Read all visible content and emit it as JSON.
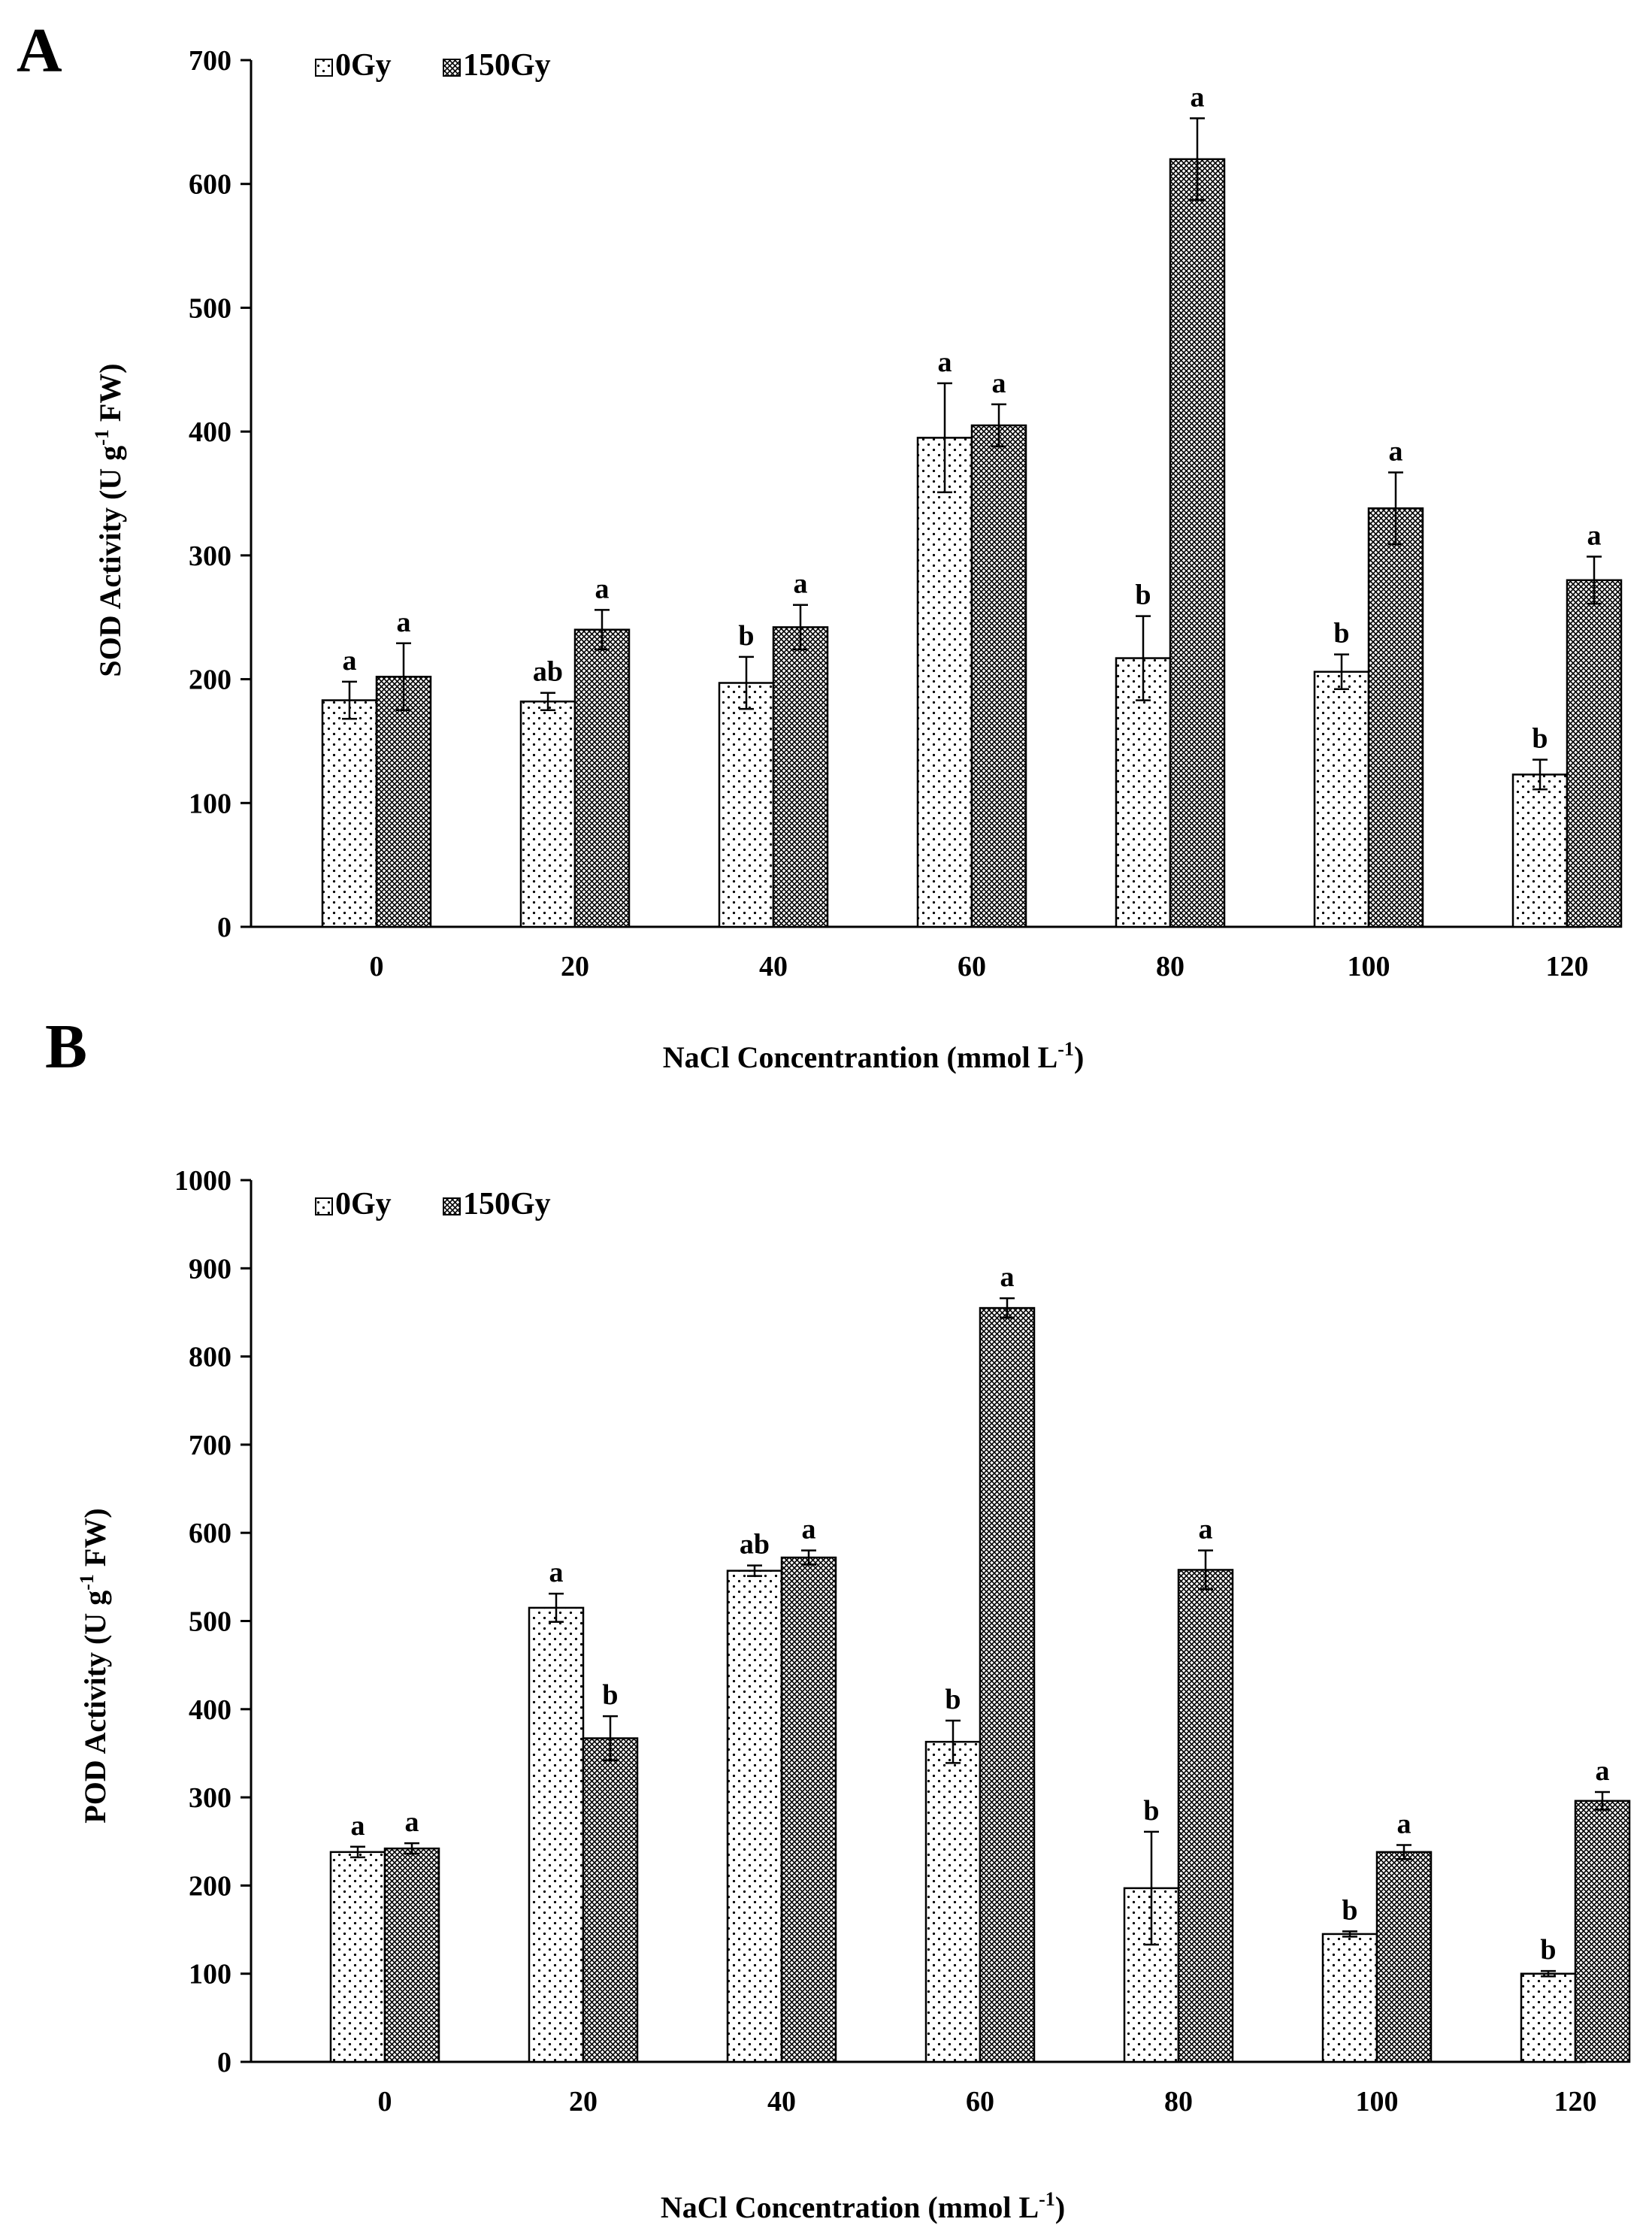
{
  "figure": {
    "panels": [
      {
        "letter": "A"
      },
      {
        "letter": "B"
      }
    ]
  },
  "chart_data": [
    {
      "type": "bar",
      "panel": "A",
      "categories": [
        "0",
        "20",
        "40",
        "60",
        "80",
        "100",
        "120"
      ],
      "series": [
        {
          "name": "0Gy",
          "pattern": "dots",
          "values": [
            183,
            182,
            197,
            395,
            217,
            206,
            123
          ],
          "errors": [
            15,
            7,
            21,
            44,
            34,
            14,
            12
          ],
          "labels": [
            "a",
            "ab",
            "b",
            "a",
            "b",
            "b",
            "b"
          ]
        },
        {
          "name": "150Gy",
          "pattern": "crosshatch",
          "values": [
            202,
            240,
            242,
            405,
            620,
            338,
            280
          ],
          "errors": [
            27,
            16,
            18,
            17,
            33,
            29,
            19
          ],
          "labels": [
            "a",
            "a",
            "a",
            "a",
            "a",
            "a",
            "a"
          ]
        }
      ],
      "xlabel_main": "NaCl Concentrantion (mmol L",
      "xlabel_sup": "-1",
      "xlabel_end": ")",
      "ylabel_main": "SOD Activity (U g",
      "ylabel_sup": "-1",
      "ylabel_end": " FW)",
      "ylim": [
        0,
        700
      ],
      "yticks": [
        0,
        100,
        200,
        300,
        400,
        500,
        600,
        700
      ],
      "legend": [
        "0Gy",
        "150Gy"
      ],
      "legend_position": "top-left"
    },
    {
      "type": "bar",
      "panel": "B",
      "categories": [
        "0",
        "20",
        "40",
        "60",
        "80",
        "100",
        "120"
      ],
      "series": [
        {
          "name": "0Gy",
          "pattern": "dots",
          "values": [
            238,
            515,
            557,
            363,
            197,
            145,
            100
          ],
          "errors": [
            6,
            16,
            6,
            24,
            64,
            3,
            3
          ],
          "labels": [
            "a",
            "a",
            "ab",
            "b",
            "b",
            "b",
            "b"
          ]
        },
        {
          "name": "150Gy",
          "pattern": "crosshatch",
          "values": [
            242,
            367,
            572,
            855,
            558,
            238,
            296
          ],
          "errors": [
            6,
            25,
            8,
            11,
            22,
            8,
            10
          ],
          "labels": [
            "a",
            "b",
            "a",
            "a",
            "a",
            "a",
            "a"
          ]
        }
      ],
      "xlabel_main": "NaCl Concentration (mmol L",
      "xlabel_sup": "-1",
      "xlabel_end": ")",
      "ylabel_main": "POD Activity (U g",
      "ylabel_sup": "-1",
      "ylabel_end": " FW)",
      "ylim": [
        0,
        1000
      ],
      "yticks": [
        0,
        100,
        200,
        300,
        400,
        500,
        600,
        700,
        800,
        900,
        1000
      ],
      "legend": [
        "0Gy",
        "150Gy"
      ],
      "legend_position": "top-left"
    }
  ]
}
